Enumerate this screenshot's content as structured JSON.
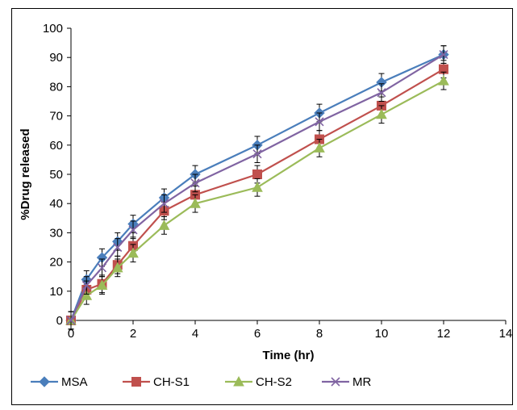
{
  "chart_data": {
    "type": "line",
    "title": "",
    "xlabel": "Time (hr)",
    "ylabel": "%Drug released",
    "xlim": [
      0,
      14
    ],
    "ylim": [
      0,
      100
    ],
    "x_ticks": [
      0,
      2,
      4,
      6,
      8,
      10,
      12,
      14
    ],
    "y_ticks": [
      0,
      10,
      20,
      30,
      40,
      50,
      60,
      70,
      80,
      90,
      100
    ],
    "grid": false,
    "legend_position": "bottom",
    "x": [
      0,
      0.5,
      1,
      1.5,
      2,
      3,
      4,
      6,
      8,
      10,
      12
    ],
    "series": [
      {
        "name": "MSA",
        "color": "#4a7ebb",
        "marker": "diamond",
        "values": [
          0,
          14,
          21.5,
          27,
          33,
          42,
          50,
          60,
          71,
          81.5,
          91
        ],
        "errors": [
          3,
          3,
          3,
          3,
          3,
          3,
          3,
          3,
          3,
          3,
          3
        ]
      },
      {
        "name": "CH-S1",
        "color": "#c0504d",
        "marker": "square",
        "values": [
          0,
          10.5,
          12.5,
          19,
          25.5,
          37.5,
          43,
          50,
          62,
          73.5,
          86
        ],
        "errors": [
          3,
          3,
          3,
          3,
          3,
          3,
          3,
          3,
          3,
          3,
          3
        ]
      },
      {
        "name": "CH-S2",
        "color": "#9bbb59",
        "marker": "triangle",
        "values": [
          0,
          8.5,
          12,
          18,
          23,
          32.5,
          40,
          45.5,
          59,
          70.5,
          82
        ],
        "errors": [
          3,
          3,
          3,
          3,
          3,
          3,
          3,
          3,
          3,
          3,
          3
        ]
      },
      {
        "name": "MR",
        "color": "#8064a2",
        "marker": "x",
        "values": [
          0,
          12,
          18,
          25,
          31,
          40,
          47,
          57,
          68,
          78,
          91
        ],
        "errors": [
          3,
          3,
          3,
          3,
          3,
          3,
          3,
          3,
          3,
          3,
          3
        ]
      }
    ]
  }
}
